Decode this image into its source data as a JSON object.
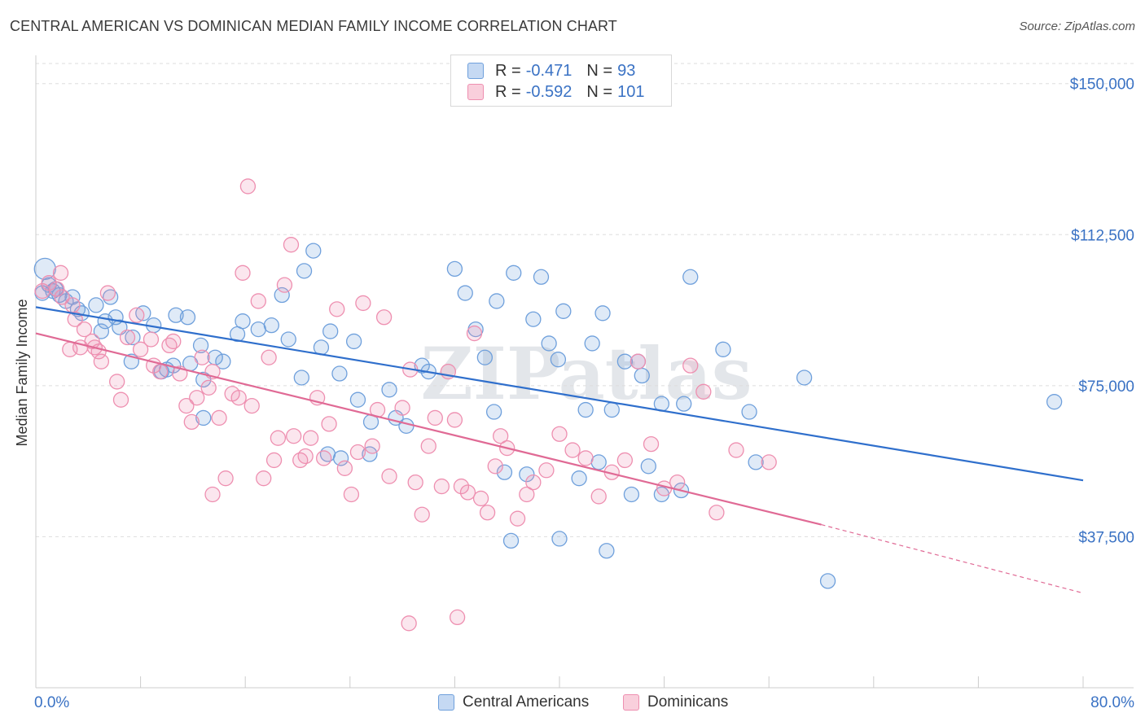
{
  "title": "CENTRAL AMERICAN VS DOMINICAN MEDIAN FAMILY INCOME CORRELATION CHART",
  "source": "Source: ZipAtlas.com",
  "watermark": "ZIPatlas",
  "legend": {
    "rows": [
      {
        "r_label": "R =",
        "r_value": "-0.471",
        "n_label": "N =",
        "n_value": "93",
        "color": "#6fa0dc"
      },
      {
        "r_label": "R =",
        "r_value": "-0.592",
        "n_label": "N =",
        "n_value": "101",
        "color": "#ee8fb0"
      }
    ]
  },
  "chart_data": {
    "type": "scatter",
    "ylabel": "Median Family Income",
    "xlim": [
      0,
      80
    ],
    "ylim": [
      0,
      155000
    ],
    "x_tick_labels": [
      "0.0%",
      "80.0%"
    ],
    "y_ticks": [
      37500,
      75000,
      112500,
      150000
    ],
    "y_tick_labels": [
      "$37,500",
      "$75,000",
      "$112,500",
      "$150,000"
    ],
    "grid": "horizontal dashed",
    "series": [
      {
        "name": "Central Americans",
        "color": "#6fa0dc",
        "line_color": "#2f6fcc",
        "trend": {
          "x": [
            0,
            80
          ],
          "y": [
            94500,
            51500
          ]
        },
        "points": [
          [
            0.7,
            104000
          ],
          [
            0.5,
            98000
          ],
          [
            1.3,
            98500
          ],
          [
            1.8,
            97500
          ],
          [
            2.8,
            97000
          ],
          [
            1.0,
            100000
          ],
          [
            1.5,
            99000
          ],
          [
            2.3,
            96000
          ],
          [
            3.2,
            94000
          ],
          [
            4.6,
            95000
          ],
          [
            5.7,
            97000
          ],
          [
            6.1,
            92000
          ],
          [
            5.3,
            91000
          ],
          [
            6.4,
            89500
          ],
          [
            7.4,
            87000
          ],
          [
            8.2,
            93000
          ],
          [
            9.0,
            90000
          ],
          [
            10.7,
            92500
          ],
          [
            11.6,
            92000
          ],
          [
            12.6,
            85000
          ],
          [
            13.7,
            82000
          ],
          [
            12.8,
            76500
          ],
          [
            14.3,
            81000
          ],
          [
            7.3,
            81000
          ],
          [
            9.6,
            78500
          ],
          [
            10.0,
            79000
          ],
          [
            11.8,
            80500
          ],
          [
            15.4,
            87800
          ],
          [
            15.8,
            91000
          ],
          [
            17.0,
            89000
          ],
          [
            18.8,
            97500
          ],
          [
            18.0,
            90000
          ],
          [
            19.3,
            86500
          ],
          [
            20.5,
            103500
          ],
          [
            20.3,
            77000
          ],
          [
            21.2,
            108500
          ],
          [
            22.5,
            88500
          ],
          [
            21.8,
            84500
          ],
          [
            23.2,
            78000
          ],
          [
            24.3,
            86000
          ],
          [
            22.3,
            58000
          ],
          [
            23.3,
            57000
          ],
          [
            25.5,
            58000
          ],
          [
            24.6,
            71500
          ],
          [
            25.6,
            66000
          ],
          [
            27.0,
            74000
          ],
          [
            27.5,
            67000
          ],
          [
            28.3,
            65000
          ],
          [
            29.5,
            80000
          ],
          [
            30.0,
            78500
          ],
          [
            32.0,
            104000
          ],
          [
            32.8,
            98000
          ],
          [
            33.6,
            89000
          ],
          [
            35.2,
            96000
          ],
          [
            34.3,
            82000
          ],
          [
            35.0,
            68500
          ],
          [
            35.8,
            53500
          ],
          [
            36.5,
            103000
          ],
          [
            38.0,
            91500
          ],
          [
            39.2,
            85500
          ],
          [
            38.6,
            102000
          ],
          [
            39.9,
            81500
          ],
          [
            40.3,
            93500
          ],
          [
            42.0,
            69000
          ],
          [
            42.5,
            85500
          ],
          [
            43.3,
            93000
          ],
          [
            44.0,
            69000
          ],
          [
            46.3,
            77500
          ],
          [
            46.0,
            81000
          ],
          [
            45.0,
            81000
          ],
          [
            47.8,
            70500
          ],
          [
            49.5,
            70500
          ],
          [
            50.0,
            102000
          ],
          [
            52.5,
            84000
          ],
          [
            54.5,
            68500
          ],
          [
            58.7,
            77000
          ],
          [
            77.8,
            71000
          ],
          [
            40.0,
            37000
          ],
          [
            41.5,
            52000
          ],
          [
            43.0,
            56000
          ],
          [
            45.5,
            48000
          ],
          [
            46.8,
            55000
          ],
          [
            47.8,
            48000
          ],
          [
            43.6,
            34000
          ],
          [
            49.3,
            49000
          ],
          [
            55.0,
            56000
          ],
          [
            60.5,
            26500
          ],
          [
            37.5,
            53000
          ],
          [
            36.3,
            36500
          ],
          [
            12.8,
            67000
          ],
          [
            10.5,
            80000
          ],
          [
            5.0,
            88500
          ],
          [
            3.5,
            93000
          ]
        ]
      },
      {
        "name": "Dominicans",
        "color": "#ee8fb0",
        "line_color": "#e06a95",
        "trend": {
          "x": [
            0,
            60
          ],
          "y": [
            88000,
            40500
          ]
        },
        "trend_dashed": {
          "x": [
            60,
            80
          ],
          "y": [
            40500,
            23500
          ]
        },
        "points": [
          [
            0.5,
            98500
          ],
          [
            1.0,
            100500
          ],
          [
            1.6,
            99000
          ],
          [
            1.9,
            103000
          ],
          [
            2.0,
            97000
          ],
          [
            2.8,
            95000
          ],
          [
            3.0,
            91500
          ],
          [
            3.7,
            89000
          ],
          [
            2.6,
            84000
          ],
          [
            3.4,
            84500
          ],
          [
            4.3,
            86000
          ],
          [
            4.5,
            84500
          ],
          [
            4.8,
            83500
          ],
          [
            5.0,
            81000
          ],
          [
            5.5,
            98000
          ],
          [
            6.2,
            76000
          ],
          [
            6.5,
            71500
          ],
          [
            7.0,
            87000
          ],
          [
            7.7,
            92500
          ],
          [
            8.0,
            84000
          ],
          [
            8.8,
            86500
          ],
          [
            9.5,
            78500
          ],
          [
            10.2,
            85000
          ],
          [
            10.5,
            86000
          ],
          [
            11.0,
            78000
          ],
          [
            11.5,
            70000
          ],
          [
            11.9,
            66000
          ],
          [
            12.3,
            72000
          ],
          [
            12.7,
            82000
          ],
          [
            13.2,
            74500
          ],
          [
            13.5,
            78500
          ],
          [
            14.0,
            67000
          ],
          [
            14.5,
            52000
          ],
          [
            15.0,
            73000
          ],
          [
            15.5,
            72000
          ],
          [
            15.8,
            103000
          ],
          [
            16.2,
            124500
          ],
          [
            16.5,
            70000
          ],
          [
            17.0,
            96000
          ],
          [
            17.4,
            52000
          ],
          [
            17.8,
            82000
          ],
          [
            18.2,
            56500
          ],
          [
            18.5,
            62000
          ],
          [
            19.0,
            100000
          ],
          [
            19.5,
            110000
          ],
          [
            19.7,
            62500
          ],
          [
            20.2,
            56500
          ],
          [
            20.6,
            57500
          ],
          [
            21.0,
            62000
          ],
          [
            21.5,
            72000
          ],
          [
            22.0,
            57000
          ],
          [
            22.4,
            65500
          ],
          [
            23.0,
            94000
          ],
          [
            23.6,
            54500
          ],
          [
            24.1,
            48000
          ],
          [
            24.6,
            58500
          ],
          [
            25.0,
            95500
          ],
          [
            25.7,
            60000
          ],
          [
            26.1,
            69000
          ],
          [
            26.6,
            92000
          ],
          [
            27.0,
            52500
          ],
          [
            28.0,
            69500
          ],
          [
            28.6,
            79000
          ],
          [
            29.0,
            51000
          ],
          [
            29.5,
            43000
          ],
          [
            30.0,
            60000
          ],
          [
            30.5,
            67000
          ],
          [
            31.0,
            50000
          ],
          [
            31.5,
            78500
          ],
          [
            32.0,
            66500
          ],
          [
            32.5,
            50000
          ],
          [
            33.0,
            48500
          ],
          [
            33.5,
            88000
          ],
          [
            34.0,
            47000
          ],
          [
            34.5,
            43500
          ],
          [
            35.1,
            55000
          ],
          [
            35.5,
            62500
          ],
          [
            36.0,
            59500
          ],
          [
            36.8,
            42000
          ],
          [
            37.5,
            48000
          ],
          [
            38.0,
            51000
          ],
          [
            39.0,
            54000
          ],
          [
            40.0,
            63000
          ],
          [
            41.0,
            59000
          ],
          [
            42.0,
            57000
          ],
          [
            43.0,
            47500
          ],
          [
            44.0,
            53500
          ],
          [
            45.0,
            56500
          ],
          [
            46.0,
            81000
          ],
          [
            47.0,
            60500
          ],
          [
            48.0,
            49500
          ],
          [
            49.0,
            51000
          ],
          [
            50.0,
            80000
          ],
          [
            51.0,
            73500
          ],
          [
            52.0,
            43500
          ],
          [
            53.5,
            59000
          ],
          [
            56.0,
            56000
          ],
          [
            28.5,
            16000
          ],
          [
            32.2,
            17500
          ],
          [
            13.5,
            48000
          ],
          [
            9.0,
            80000
          ]
        ]
      }
    ]
  },
  "bottom_legend": [
    {
      "label": "Central Americans",
      "color": "#6fa0dc"
    },
    {
      "label": "Dominicans",
      "color": "#ee8fb0"
    }
  ]
}
